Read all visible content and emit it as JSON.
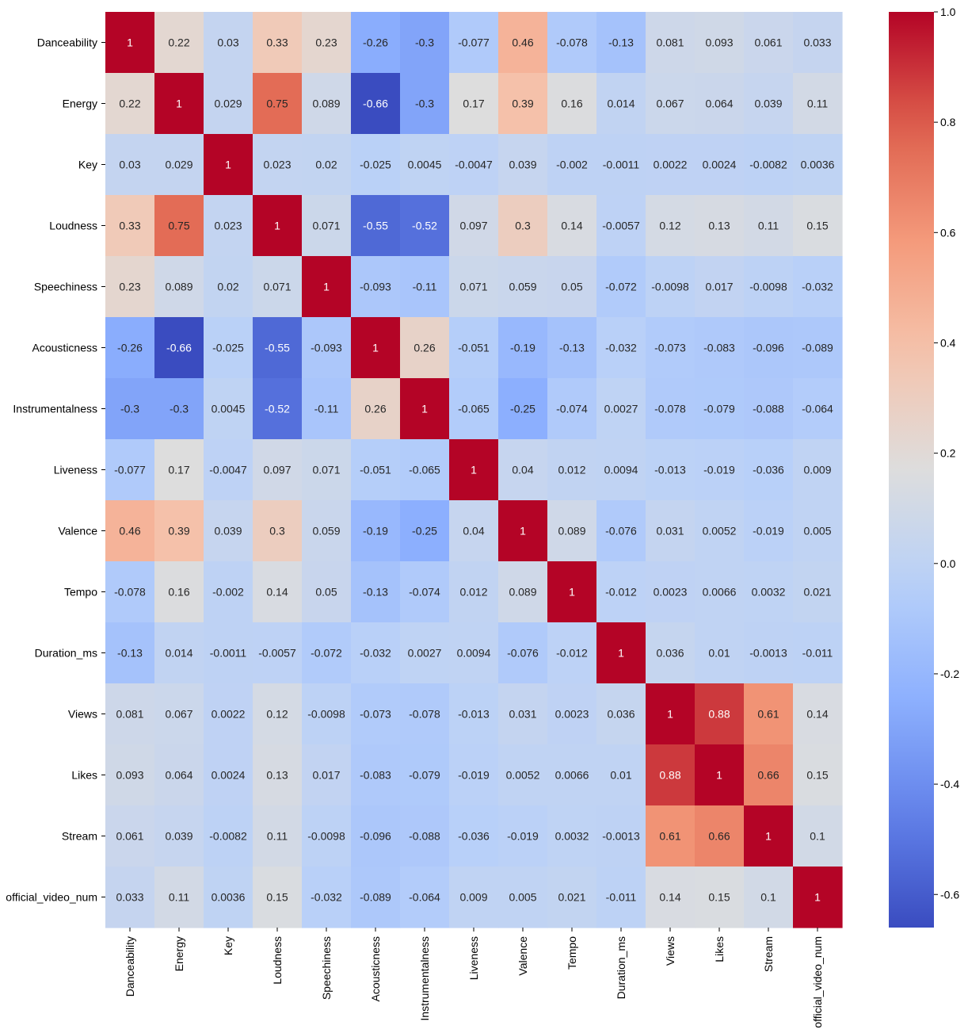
{
  "chart_data": {
    "type": "heatmap",
    "title": "",
    "xlabel": "",
    "ylabel": "",
    "colormap": "coolwarm",
    "color_range": [
      -0.66,
      1.0
    ],
    "labels": [
      "Danceability",
      "Energy",
      "Key",
      "Loudness",
      "Speechiness",
      "Acousticness",
      "Instrumentalness",
      "Liveness",
      "Valence",
      "Tempo",
      "Duration_ms",
      "Views",
      "Likes",
      "Stream",
      "official_video_num"
    ],
    "matrix": [
      [
        1,
        0.22,
        0.03,
        0.33,
        0.23,
        -0.26,
        -0.3,
        -0.077,
        0.46,
        -0.078,
        -0.13,
        0.081,
        0.093,
        0.061,
        0.033
      ],
      [
        0.22,
        1,
        0.029,
        0.75,
        0.089,
        -0.66,
        -0.3,
        0.17,
        0.39,
        0.16,
        0.014,
        0.067,
        0.064,
        0.039,
        0.11
      ],
      [
        0.03,
        0.029,
        1,
        0.023,
        0.02,
        -0.025,
        0.0045,
        -0.0047,
        0.039,
        -0.002,
        -0.0011,
        0.0022,
        0.0024,
        -0.0082,
        0.0036
      ],
      [
        0.33,
        0.75,
        0.023,
        1,
        0.071,
        -0.55,
        -0.52,
        0.097,
        0.3,
        0.14,
        -0.0057,
        0.12,
        0.13,
        0.11,
        0.15
      ],
      [
        0.23,
        0.089,
        0.02,
        0.071,
        1,
        -0.093,
        -0.11,
        0.071,
        0.059,
        0.05,
        -0.072,
        -0.0098,
        0.017,
        -0.0098,
        -0.032
      ],
      [
        -0.26,
        -0.66,
        -0.025,
        -0.55,
        -0.093,
        1,
        0.26,
        -0.051,
        -0.19,
        -0.13,
        -0.032,
        -0.073,
        -0.083,
        -0.096,
        -0.089
      ],
      [
        -0.3,
        -0.3,
        0.0045,
        -0.52,
        -0.11,
        0.26,
        1,
        -0.065,
        -0.25,
        -0.074,
        0.0027,
        -0.078,
        -0.079,
        -0.088,
        -0.064
      ],
      [
        -0.077,
        0.17,
        -0.0047,
        0.097,
        0.071,
        -0.051,
        -0.065,
        1,
        0.04,
        0.012,
        0.0094,
        -0.013,
        -0.019,
        -0.036,
        0.009
      ],
      [
        0.46,
        0.39,
        0.039,
        0.3,
        0.059,
        -0.19,
        -0.25,
        0.04,
        1,
        0.089,
        -0.076,
        0.031,
        0.0052,
        -0.019,
        0.005
      ],
      [
        -0.078,
        0.16,
        -0.002,
        0.14,
        0.05,
        -0.13,
        -0.074,
        0.012,
        0.089,
        1,
        -0.012,
        0.0023,
        0.0066,
        0.0032,
        0.021
      ],
      [
        -0.13,
        0.014,
        -0.0011,
        -0.0057,
        -0.072,
        -0.032,
        0.0027,
        0.0094,
        -0.076,
        -0.012,
        1,
        0.036,
        0.01,
        -0.0013,
        -0.011
      ],
      [
        0.081,
        0.067,
        0.0022,
        0.12,
        -0.0098,
        -0.073,
        -0.078,
        -0.013,
        0.031,
        0.0023,
        0.036,
        1,
        0.88,
        0.61,
        0.14
      ],
      [
        0.093,
        0.064,
        0.0024,
        0.13,
        0.017,
        -0.083,
        -0.079,
        -0.019,
        0.0052,
        0.0066,
        0.01,
        0.88,
        1,
        0.66,
        0.15
      ],
      [
        0.061,
        0.039,
        -0.0082,
        0.11,
        -0.0098,
        -0.096,
        -0.088,
        -0.036,
        -0.019,
        0.0032,
        -0.0013,
        0.61,
        0.66,
        1,
        0.1
      ],
      [
        0.033,
        0.11,
        0.0036,
        0.15,
        -0.032,
        -0.089,
        -0.064,
        0.009,
        0.005,
        0.021,
        -0.011,
        0.14,
        0.15,
        0.1,
        1
      ]
    ],
    "colorbar_ticks": [
      1.0,
      0.8,
      0.6,
      0.4,
      0.2,
      0.0,
      -0.2,
      -0.4,
      -0.6
    ],
    "colorbar_tick_labels": [
      "1.0",
      "0.8",
      "0.6",
      "0.4",
      "0.2",
      "0.0",
      "-0.2",
      "-0.4",
      "-0.6"
    ]
  }
}
